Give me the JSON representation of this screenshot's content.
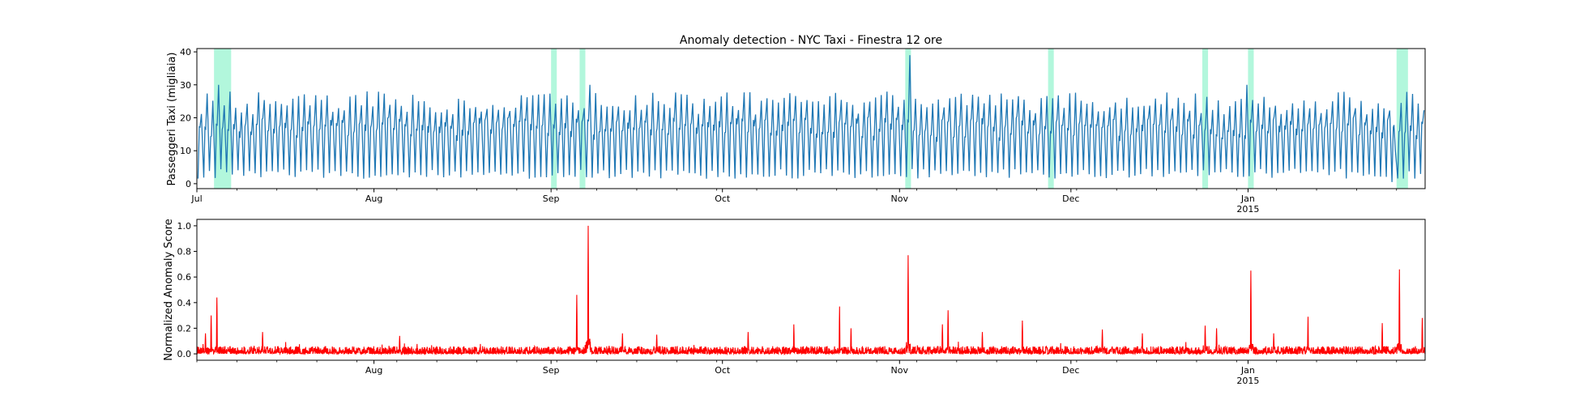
{
  "chart_data": [
    {
      "type": "line",
      "title": "Anomaly detection - NYC Taxi - Finestra 12 ore",
      "xlabel": "",
      "ylabel": "Passeggeri Taxi (migliaia)",
      "xlim": [
        "2014-07-01",
        "2015-01-31"
      ],
      "ylim": [
        -1.5,
        41
      ],
      "yticks": [
        0,
        10,
        20,
        30,
        40
      ],
      "xticks": [
        {
          "date": "2014-07-01",
          "label": "Jul",
          "sublabel": ""
        },
        {
          "date": "2014-08-01",
          "label": "Aug",
          "sublabel": ""
        },
        {
          "date": "2014-09-01",
          "label": "Sep",
          "sublabel": ""
        },
        {
          "date": "2014-10-01",
          "label": "Oct",
          "sublabel": ""
        },
        {
          "date": "2014-11-01",
          "label": "Nov",
          "sublabel": ""
        },
        {
          "date": "2014-12-01",
          "label": "Dec",
          "sublabel": ""
        },
        {
          "date": "2015-01-01",
          "label": "Jan",
          "sublabel": "2015"
        }
      ],
      "line_color": "#1f77b4",
      "series": [
        {
          "sampling": "daily cycle",
          "daily_peak_range": [
            21,
            28
          ],
          "daily_trough_range": [
            1.5,
            4.5
          ],
          "notable_points": [
            {
              "x": "2014-07-04",
              "y": 30
            },
            {
              "x": "2014-09-07",
              "y": 30
            },
            {
              "x": "2014-11-02",
              "y": 39
            },
            {
              "x": "2014-12-31",
              "y": 30
            },
            {
              "x": "2015-01-26",
              "y": 0.5
            }
          ]
        }
      ],
      "anomaly_windows": [
        {
          "start": "2014-07-04",
          "end": "2014-07-07"
        },
        {
          "start": "2014-09-01",
          "end": "2014-09-02"
        },
        {
          "start": "2014-09-06",
          "end": "2014-09-07"
        },
        {
          "start": "2014-11-02",
          "end": "2014-11-03"
        },
        {
          "start": "2014-11-27",
          "end": "2014-11-28"
        },
        {
          "start": "2014-12-24",
          "end": "2014-12-25"
        },
        {
          "start": "2015-01-01",
          "end": "2015-01-02"
        },
        {
          "start": "2015-01-27",
          "end": "2015-01-29"
        }
      ],
      "anomaly_color": "#b2f7dc",
      "grid": false
    },
    {
      "type": "line",
      "title": "",
      "xlabel": "",
      "ylabel": "Normalized Anomaly Score",
      "xlim": [
        "2014-07-01",
        "2015-01-31"
      ],
      "ylim": [
        -0.05,
        1.05
      ],
      "yticks": [
        0.0,
        0.2,
        0.4,
        0.6,
        0.8,
        1.0
      ],
      "ytick_labels": [
        "0.0",
        "0.2",
        "0.4",
        "0.6",
        "0.8",
        "1.0"
      ],
      "xticks": [
        {
          "date": "2014-08-01",
          "label": "Aug",
          "sublabel": ""
        },
        {
          "date": "2014-09-01",
          "label": "Sep",
          "sublabel": ""
        },
        {
          "date": "2014-10-01",
          "label": "Oct",
          "sublabel": ""
        },
        {
          "date": "2014-11-01",
          "label": "Nov",
          "sublabel": ""
        },
        {
          "date": "2014-12-01",
          "label": "Dec",
          "sublabel": ""
        },
        {
          "date": "2015-01-01",
          "label": "Jan",
          "sublabel": "2015"
        }
      ],
      "line_color": "#ff0000",
      "series": [
        {
          "baseline_range": [
            0.0,
            0.06
          ],
          "spikes": [
            {
              "x": "2014-07-02",
              "y": 0.16
            },
            {
              "x": "2014-07-03",
              "y": 0.3
            },
            {
              "x": "2014-07-04",
              "y": 0.44
            },
            {
              "x": "2014-07-12",
              "y": 0.17
            },
            {
              "x": "2014-08-05",
              "y": 0.14
            },
            {
              "x": "2014-09-05",
              "y": 0.46
            },
            {
              "x": "2014-09-07",
              "y": 1.0
            },
            {
              "x": "2014-09-13",
              "y": 0.16
            },
            {
              "x": "2014-09-19",
              "y": 0.15
            },
            {
              "x": "2014-10-05",
              "y": 0.17
            },
            {
              "x": "2014-10-13",
              "y": 0.23
            },
            {
              "x": "2014-10-21",
              "y": 0.37
            },
            {
              "x": "2014-10-23",
              "y": 0.2
            },
            {
              "x": "2014-11-02",
              "y": 0.77
            },
            {
              "x": "2014-11-08",
              "y": 0.23
            },
            {
              "x": "2014-11-09",
              "y": 0.34
            },
            {
              "x": "2014-11-15",
              "y": 0.17
            },
            {
              "x": "2014-11-22",
              "y": 0.26
            },
            {
              "x": "2014-12-06",
              "y": 0.19
            },
            {
              "x": "2014-12-13",
              "y": 0.16
            },
            {
              "x": "2014-12-24",
              "y": 0.22
            },
            {
              "x": "2014-12-26",
              "y": 0.2
            },
            {
              "x": "2015-01-01",
              "y": 0.65
            },
            {
              "x": "2015-01-05",
              "y": 0.16
            },
            {
              "x": "2015-01-11",
              "y": 0.29
            },
            {
              "x": "2015-01-24",
              "y": 0.24
            },
            {
              "x": "2015-01-27",
              "y": 0.66
            },
            {
              "x": "2015-01-31",
              "y": 0.28
            }
          ]
        }
      ],
      "grid": false
    }
  ]
}
